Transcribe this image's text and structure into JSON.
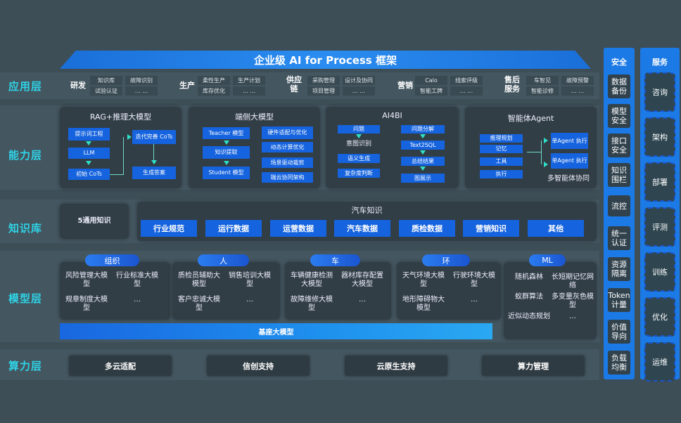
{
  "title": "企业级 AI for Process 框架",
  "layers": [
    "应用层",
    "能力层",
    "知识库",
    "模型层",
    "算力层"
  ],
  "app_groups": [
    {
      "label": "研发",
      "items": [
        "知识库",
        "故障识别",
        "试验认证",
        "… …"
      ]
    },
    {
      "label": "生产",
      "items": [
        "柔性生产",
        "生产计划",
        "库存优化",
        "… …"
      ]
    },
    {
      "label": "供应链",
      "items": [
        "采购管理",
        "设计及协同",
        "项目管理",
        "… …"
      ]
    },
    {
      "label": "营销",
      "items": [
        "Calo",
        "线索评级",
        "智能工牌",
        "… …"
      ]
    },
    {
      "label": "售后服务",
      "items": [
        "车智见",
        "故障预警",
        "智能诊修",
        "… …"
      ]
    }
  ],
  "ability": {
    "rag": {
      "title": "RAG+推理大模型",
      "boxes": [
        "提示词工程",
        "LLM",
        "初始 CoTs",
        "迭代完善 CoTs",
        "生成答案"
      ]
    },
    "edge": {
      "title": "端侧大模型",
      "boxes": [
        "Teacher 模型",
        "知识提取",
        "Student 模型",
        "硬件适配与优化",
        "动态计算优化",
        "场景驱动裁剪",
        "端云协同架构"
      ]
    },
    "ai4bi": {
      "title": "AI4BI",
      "boxes": [
        "问题",
        "意图识别",
        "语义生成",
        "复杂度判断",
        "问题分解",
        "Text2SQL",
        "总结结果",
        "图展示"
      ]
    },
    "agent": {
      "title": "智能体Agent",
      "boxes": [
        "推理规划",
        "记忆",
        "工具",
        "执行",
        "单Agent 执行",
        "单Agent 执行"
      ],
      "caption": "多智能体协同"
    }
  },
  "knowledge": {
    "general": "5通用知识",
    "auto_title": "汽车知识",
    "items": [
      "行业规范",
      "运行数据",
      "运营数据",
      "汽车数据",
      "质检数据",
      "营销知识",
      "其他"
    ]
  },
  "models": [
    {
      "label": "组织",
      "items": [
        "风险管理大模型",
        "行业标准大模型",
        "规章制度大模型",
        "…"
      ]
    },
    {
      "label": "人",
      "items": [
        "质检员辅助大模型",
        "销售培训大模型",
        "客户忠诚大模型",
        "…"
      ]
    },
    {
      "label": "车",
      "items": [
        "车辆健康检测大模型",
        "器材库存配置大模型",
        "故障维修大模型",
        "…"
      ]
    },
    {
      "label": "环",
      "items": [
        "天气环境大模型",
        "行驶环境大模型",
        "地形障碍物大模型",
        "…"
      ]
    },
    {
      "label": "ML",
      "items": [
        "随机森林",
        "长短期记忆网络",
        "蚁群算法",
        "多变量灰色模型",
        "近似动态规划",
        "…"
      ]
    }
  ],
  "base_model": "基座大模型",
  "compute": [
    "多云适配",
    "信创支持",
    "云原生支持",
    "算力管理"
  ],
  "security": {
    "title": "安全",
    "items": [
      "数据备份",
      "模型安全",
      "接口安全",
      "知识围栏",
      "流控",
      "统一认证",
      "资源隔离",
      "Token计量",
      "价值导向",
      "负载均衡"
    ]
  },
  "service": {
    "title": "服务",
    "items": [
      "咨询",
      "架构",
      "部署",
      "评测",
      "训练",
      "优化",
      "运维"
    ]
  },
  "colors": {
    "background": "#3d4e57",
    "accent": "#1563de",
    "layer_label": "#2fd3e6",
    "arrow": "#2de0c8"
  }
}
